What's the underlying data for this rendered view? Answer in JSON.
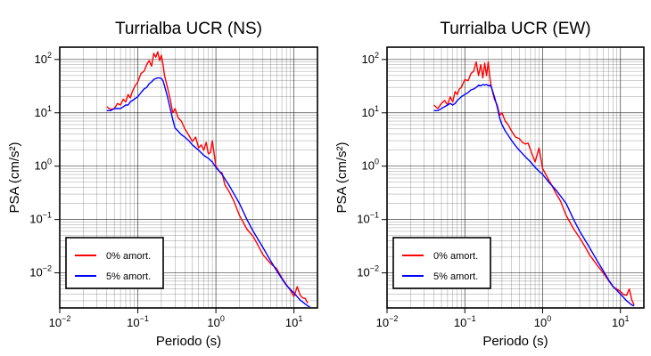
{
  "chart_data": [
    {
      "type": "line",
      "title": "Turrialba UCR (NS)",
      "xlabel": "Periodo (s)",
      "ylabel": "PSA (cm/s²)",
      "xscale": "log",
      "yscale": "log",
      "xlim": [
        0.01,
        20
      ],
      "ylim": [
        0.0022,
        170
      ],
      "grid": true,
      "legend_position": "bottom-left",
      "xticks": [
        {
          "base": "10",
          "exp": "−2"
        },
        {
          "base": "10",
          "exp": "−1"
        },
        {
          "base": "10",
          "exp": "0"
        },
        {
          "base": "10",
          "exp": "1"
        }
      ],
      "yticks": [
        {
          "base": "10",
          "exp": "−2"
        },
        {
          "base": "10",
          "exp": "−1"
        },
        {
          "base": "10",
          "exp": "0"
        },
        {
          "base": "10",
          "exp": "1"
        },
        {
          "base": "10",
          "exp": "2"
        }
      ],
      "series": [
        {
          "name": "0% amort.",
          "color": "#ff0000",
          "x": [
            0.04,
            0.045,
            0.05,
            0.055,
            0.06,
            0.065,
            0.07,
            0.075,
            0.08,
            0.085,
            0.09,
            0.1,
            0.11,
            0.12,
            0.13,
            0.14,
            0.15,
            0.16,
            0.17,
            0.18,
            0.19,
            0.2,
            0.21,
            0.22,
            0.24,
            0.26,
            0.28,
            0.3,
            0.33,
            0.36,
            0.4,
            0.45,
            0.5,
            0.55,
            0.6,
            0.65,
            0.7,
            0.75,
            0.8,
            0.85,
            0.9,
            1.0,
            1.1,
            1.2,
            1.3,
            1.5,
            1.7,
            2.0,
            2.5,
            3,
            3.5,
            4,
            5,
            6,
            7,
            8,
            9,
            10,
            11,
            12,
            13,
            14,
            15
          ],
          "y": [
            13,
            11.5,
            12,
            15,
            14,
            18,
            16,
            22,
            19,
            25,
            30,
            38,
            55,
            60,
            80,
            95,
            75,
            130,
            110,
            140,
            95,
            120,
            80,
            50,
            30,
            18,
            10,
            12,
            8,
            7,
            5,
            3.8,
            2.9,
            3.5,
            2.2,
            2.5,
            2.0,
            2.8,
            1.7,
            1.8,
            3.0,
            1.0,
            0.8,
            0.75,
            0.45,
            0.32,
            0.22,
            0.12,
            0.066,
            0.048,
            0.032,
            0.022,
            0.015,
            0.012,
            0.008,
            0.006,
            0.0047,
            0.0036,
            0.0055,
            0.0038,
            0.0034,
            0.0033,
            0.0027
          ]
        },
        {
          "name": "5% amort.",
          "color": "#0000ff",
          "x": [
            0.04,
            0.045,
            0.05,
            0.055,
            0.06,
            0.065,
            0.07,
            0.075,
            0.08,
            0.09,
            0.1,
            0.11,
            0.12,
            0.13,
            0.14,
            0.15,
            0.16,
            0.17,
            0.18,
            0.19,
            0.2,
            0.21,
            0.22,
            0.24,
            0.26,
            0.28,
            0.3,
            0.33,
            0.36,
            0.4,
            0.45,
            0.5,
            0.6,
            0.7,
            0.8,
            0.9,
            1.0,
            1.2,
            1.5,
            2.0,
            2.5,
            3,
            4,
            5,
            6,
            7,
            8,
            10,
            12,
            14,
            15,
            16
          ],
          "y": [
            11,
            11,
            12,
            12,
            12,
            13,
            14,
            14,
            16,
            18,
            20,
            24,
            28,
            30,
            35,
            38,
            42,
            44,
            45,
            45,
            44,
            40,
            32,
            20,
            12,
            7.5,
            5.2,
            4.5,
            3.9,
            3.5,
            3.0,
            2.5,
            2.0,
            1.6,
            1.4,
            1.2,
            0.95,
            0.7,
            0.42,
            0.2,
            0.1,
            0.06,
            0.03,
            0.017,
            0.011,
            0.0078,
            0.0058,
            0.0042,
            0.0031,
            0.0026,
            0.0024,
            0.0023
          ]
        }
      ]
    },
    {
      "type": "line",
      "title": "Turrialba UCR (EW)",
      "xlabel": "Periodo (s)",
      "ylabel": "PSA (cm/s²)",
      "xscale": "log",
      "yscale": "log",
      "xlim": [
        0.01,
        20
      ],
      "ylim": [
        0.0022,
        170
      ],
      "grid": true,
      "legend_position": "bottom-left",
      "xticks": [
        {
          "base": "10",
          "exp": "−2"
        },
        {
          "base": "10",
          "exp": "−1"
        },
        {
          "base": "10",
          "exp": "0"
        },
        {
          "base": "10",
          "exp": "1"
        }
      ],
      "yticks": [
        {
          "base": "10",
          "exp": "−2"
        },
        {
          "base": "10",
          "exp": "−1"
        },
        {
          "base": "10",
          "exp": "0"
        },
        {
          "base": "10",
          "exp": "1"
        },
        {
          "base": "10",
          "exp": "2"
        }
      ],
      "series": [
        {
          "name": "0% amort.",
          "color": "#ff0000",
          "x": [
            0.04,
            0.045,
            0.05,
            0.055,
            0.06,
            0.065,
            0.07,
            0.075,
            0.08,
            0.085,
            0.09,
            0.1,
            0.11,
            0.12,
            0.13,
            0.14,
            0.15,
            0.16,
            0.17,
            0.18,
            0.19,
            0.2,
            0.21,
            0.22,
            0.24,
            0.26,
            0.28,
            0.3,
            0.33,
            0.36,
            0.4,
            0.45,
            0.5,
            0.55,
            0.6,
            0.65,
            0.7,
            0.8,
            0.9,
            1.0,
            1.1,
            1.2,
            1.3,
            1.5,
            1.7,
            2.0,
            2.5,
            3,
            3.5,
            4,
            5,
            6,
            7,
            8,
            10,
            11,
            12,
            13,
            14,
            15
          ],
          "y": [
            14,
            12,
            15,
            17,
            14,
            20,
            16,
            25,
            22,
            28,
            30,
            42,
            40,
            55,
            60,
            90,
            50,
            80,
            45,
            85,
            50,
            90,
            45,
            30,
            18,
            14,
            9,
            10,
            7,
            6,
            4.5,
            3.5,
            3.3,
            2.8,
            2.6,
            2.7,
            2.0,
            1.2,
            2.2,
            0.9,
            0.7,
            0.55,
            0.45,
            0.3,
            0.22,
            0.12,
            0.067,
            0.045,
            0.031,
            0.022,
            0.014,
            0.01,
            0.0073,
            0.0055,
            0.0045,
            0.0039,
            0.0038,
            0.005,
            0.0031,
            0.0025
          ]
        },
        {
          "name": "5% amort.",
          "color": "#0000ff",
          "x": [
            0.04,
            0.045,
            0.05,
            0.055,
            0.06,
            0.065,
            0.07,
            0.075,
            0.08,
            0.09,
            0.1,
            0.11,
            0.12,
            0.13,
            0.14,
            0.15,
            0.16,
            0.17,
            0.18,
            0.19,
            0.2,
            0.21,
            0.22,
            0.24,
            0.26,
            0.28,
            0.3,
            0.33,
            0.36,
            0.4,
            0.45,
            0.5,
            0.6,
            0.7,
            0.8,
            0.9,
            1.0,
            1.2,
            1.5,
            2.0,
            2.5,
            3,
            4,
            5,
            6,
            7,
            8,
            10,
            12,
            14,
            15
          ],
          "y": [
            11,
            11,
            12,
            13,
            14,
            15,
            14,
            15,
            17,
            20,
            22,
            24,
            27,
            28,
            30,
            33,
            32,
            34,
            33,
            34,
            32,
            33,
            30,
            20,
            13,
            8,
            6,
            4.6,
            3.8,
            3.0,
            2.4,
            2.0,
            1.5,
            1.2,
            0.95,
            0.8,
            0.7,
            0.5,
            0.35,
            0.2,
            0.1,
            0.06,
            0.03,
            0.017,
            0.011,
            0.0075,
            0.0056,
            0.004,
            0.003,
            0.0025,
            0.0024
          ]
        }
      ]
    }
  ]
}
